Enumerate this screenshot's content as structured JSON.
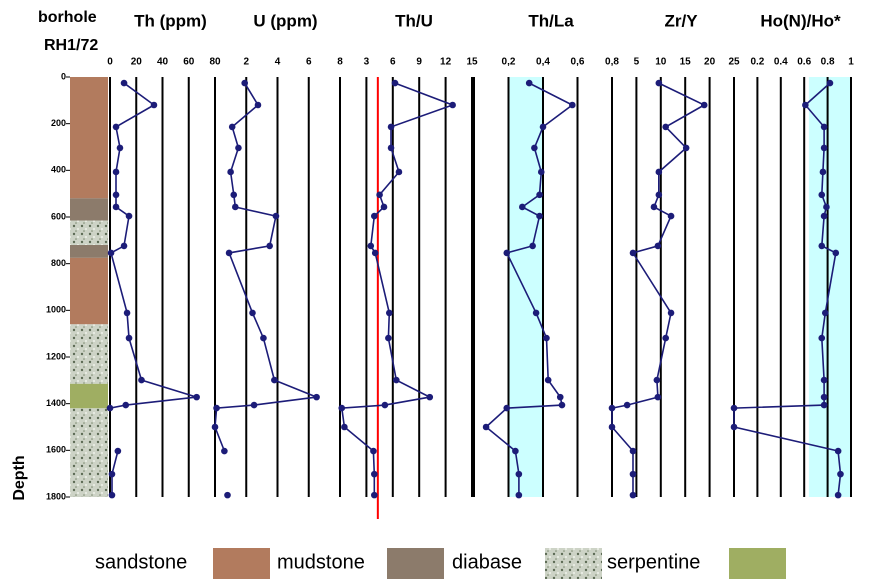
{
  "header": {
    "line1": "borhole",
    "line2": "RH1/72"
  },
  "depth": {
    "label": "Depth",
    "ylim": [
      0,
      1800
    ],
    "yticks": [
      0,
      200,
      400,
      600,
      800,
      1000,
      1200,
      1400,
      1600,
      1800
    ],
    "values": [
      26,
      120,
      214,
      304,
      407,
      505,
      557,
      596,
      724,
      754,
      1011,
      1119,
      1299,
      1372,
      1406,
      1419,
      1500,
      1603,
      1702,
      1792
    ]
  },
  "lithology": {
    "rocks": [
      {
        "name": "sandstone",
        "color": "#b27b5e"
      },
      {
        "name": "mudstone",
        "color": "#8c7b6b"
      },
      {
        "name": "diabase",
        "color": "#c9cfc4"
      },
      {
        "name": "serpentine",
        "color": "#9fae62"
      }
    ],
    "layers": [
      {
        "top": 0,
        "bottom": 520,
        "rock": 0
      },
      {
        "top": 520,
        "bottom": 615,
        "rock": 1
      },
      {
        "top": 615,
        "bottom": 720,
        "rock": 2
      },
      {
        "top": 720,
        "bottom": 775,
        "rock": 1
      },
      {
        "top": 775,
        "bottom": 1060,
        "rock": 0
      },
      {
        "top": 1060,
        "bottom": 1315,
        "rock": 2
      },
      {
        "top": 1315,
        "bottom": 1420,
        "rock": 3
      },
      {
        "top": 1420,
        "bottom": 1800,
        "rock": 2
      }
    ]
  },
  "chart_data": [
    {
      "type": "line",
      "title": "Th (ppm)",
      "xlim": [
        0,
        80
      ],
      "xticks": [
        0,
        20,
        40,
        60,
        80
      ],
      "color": "#1c1c78",
      "values": [
        10.7,
        33.5,
        4.6,
        7.6,
        4.6,
        4.6,
        4.6,
        14.5,
        10.7,
        0.8,
        13,
        14.5,
        24,
        66,
        12,
        0,
        null,
        6,
        1.5,
        1.5
      ]
    },
    {
      "type": "line",
      "title": "U (ppm)",
      "xlim": [
        0,
        8
      ],
      "xticks": [
        2,
        4,
        6,
        8
      ],
      "color": "#1c1c78",
      "values": [
        1.9,
        2.75,
        1.1,
        1.5,
        1.0,
        1.2,
        1.3,
        3.9,
        3.5,
        0.9,
        2.4,
        3.1,
        3.8,
        6.5,
        2.5,
        0.1,
        0,
        0.6,
        null,
        0.8
      ]
    },
    {
      "type": "line",
      "title": "Th/U",
      "xlim": [
        0,
        15
      ],
      "xticks": [
        3,
        6,
        9,
        12,
        15
      ],
      "color": "#1c1c78",
      "reference": 4.3,
      "reference_color": "#ff0000",
      "values": [
        6.25,
        12.8,
        5.8,
        5.8,
        6.7,
        4.5,
        5,
        3.9,
        3.5,
        4,
        5.6,
        5.5,
        6.4,
        10.2,
        5.1,
        0.2,
        0.5,
        3.8,
        3.9,
        3.9
      ]
    },
    {
      "type": "line",
      "title": "Th/La",
      "xlim": [
        0,
        0.8
      ],
      "xticks": [
        {
          "value": 0.2,
          "label": "0,2"
        },
        {
          "value": 0.4,
          "label": "0,4"
        },
        {
          "value": 0.6,
          "label": "0,6"
        },
        {
          "value": 0.8,
          "label": "0,8"
        }
      ],
      "color": "#1c1c78",
      "shade": [
        0.2,
        0.4
      ],
      "shade_color": "#ccffff",
      "values": [
        0.32,
        0.57,
        0.4,
        0.35,
        0.39,
        0.38,
        0.28,
        0.38,
        0.34,
        0.19,
        0.36,
        0.42,
        0.43,
        0.5,
        0.51,
        0.19,
        0.07,
        0.24,
        0.26,
        0.26
      ]
    },
    {
      "type": "line",
      "title": "Zr/Y",
      "xlim": [
        0,
        25
      ],
      "xticks": [
        5,
        10,
        15,
        20,
        25
      ],
      "color": "#1c1c78",
      "values": [
        9.6,
        18.9,
        11,
        15.2,
        9.6,
        9.6,
        8.6,
        12.1,
        9.4,
        4.3,
        12.1,
        11,
        9.2,
        9.4,
        3.1,
        0,
        0,
        4.3,
        4.3,
        4.3
      ]
    },
    {
      "type": "line",
      "title": "Ho(N)/Ho*",
      "xlim": [
        0,
        1
      ],
      "xticks": [
        0.2,
        0.4,
        0.6,
        0.8,
        1
      ],
      "color": "#1c1c78",
      "shade": [
        0.64,
        1
      ],
      "shade_color": "#ccffff",
      "values": [
        0.82,
        0.61,
        0.77,
        0.77,
        0.76,
        0.75,
        0.79,
        0.77,
        0.75,
        0.87,
        0.78,
        0.75,
        0.77,
        0.77,
        0.77,
        0,
        0,
        0.89,
        0.91,
        0.89
      ]
    }
  ]
}
